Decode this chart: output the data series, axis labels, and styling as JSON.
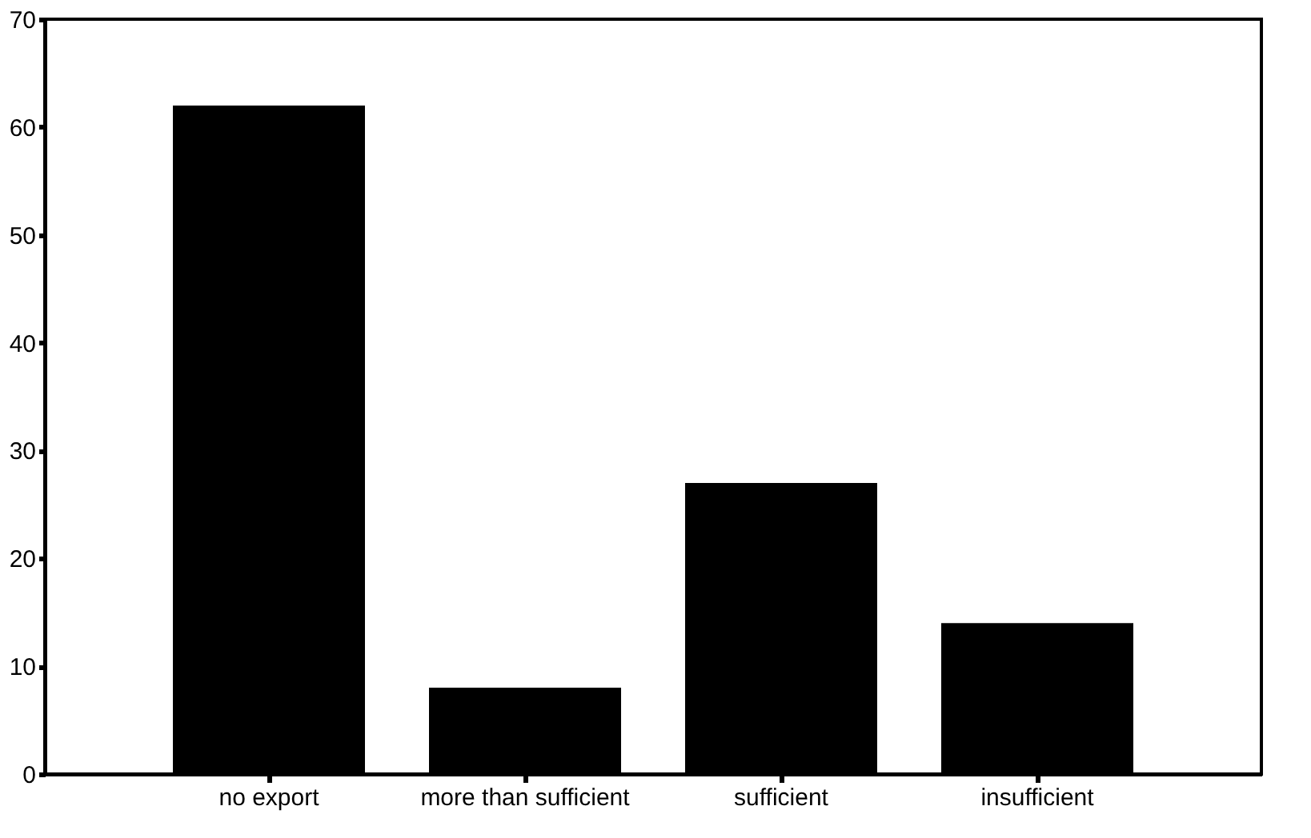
{
  "chart_data": {
    "type": "bar",
    "categories": [
      "no export",
      "more than sufficient",
      "sufficient",
      "insufficient"
    ],
    "values": [
      62,
      8,
      27,
      14
    ],
    "color": "#000000",
    "ylim": [
      0,
      70
    ],
    "yticks": [
      0,
      10,
      20,
      30,
      40,
      50,
      60,
      70
    ],
    "grid": false
  }
}
